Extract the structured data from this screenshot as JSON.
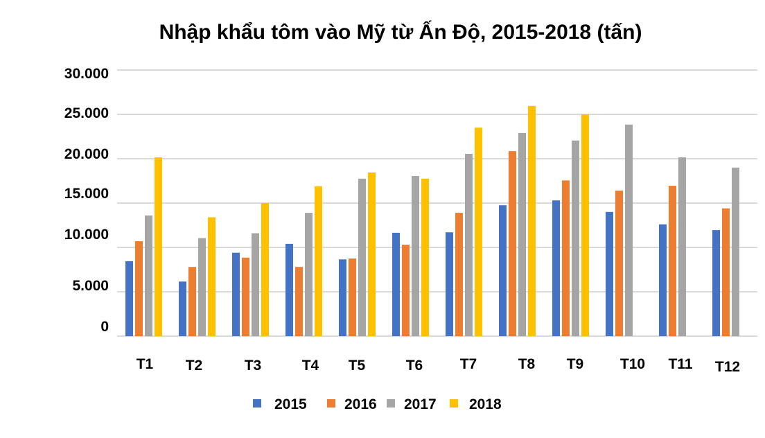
{
  "chart_data": {
    "type": "bar",
    "title": "Nhập khẩu tôm vào Mỹ từ Ấn Độ, 2015-2018 (tấn)",
    "xlabel": "",
    "ylabel": "",
    "ylim": [
      0,
      30000
    ],
    "grid": true,
    "legend_position": "bottom",
    "y_ticks": [
      {
        "value": 0,
        "label": "0"
      },
      {
        "value": 5000,
        "label": "5.000"
      },
      {
        "value": 10000,
        "label": "10.000"
      },
      {
        "value": 15000,
        "label": "15.000"
      },
      {
        "value": 20000,
        "label": "20.000"
      },
      {
        "value": 25000,
        "label": "25.000"
      },
      {
        "value": 30000,
        "label": "30.000"
      }
    ],
    "categories": [
      "T1",
      "T2",
      "T3",
      "T4",
      "T5",
      "T6",
      "T7",
      "T8",
      "T9",
      "T10",
      "T11",
      "T12"
    ],
    "series": [
      {
        "name": "2015",
        "color": "#4472C4",
        "values": [
          8450,
          6150,
          9400,
          10400,
          8650,
          11650,
          11700,
          14750,
          15300,
          14000,
          12600,
          11950
        ]
      },
      {
        "name": "2016",
        "color": "#ED7D31",
        "values": [
          10700,
          7800,
          8850,
          7800,
          8750,
          10300,
          13900,
          20850,
          17550,
          16400,
          16950,
          14400
        ]
      },
      {
        "name": "2017",
        "color": "#A5A5A5",
        "values": [
          13600,
          11050,
          11600,
          13900,
          17750,
          18050,
          20550,
          22900,
          22050,
          23850,
          20150,
          19000
        ]
      },
      {
        "name": "2018",
        "color": "#FFC000",
        "values": [
          20150,
          13400,
          15000,
          16900,
          18450,
          17750,
          23500,
          25950,
          25000,
          null,
          null,
          null
        ]
      }
    ]
  }
}
